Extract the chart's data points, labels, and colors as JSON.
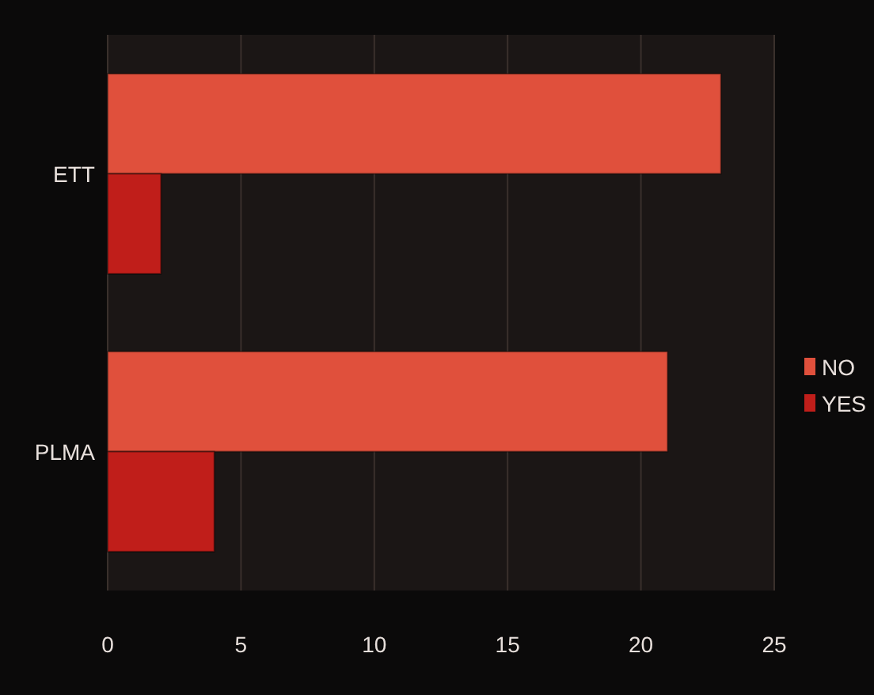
{
  "chart_data": {
    "type": "bar",
    "orientation": "horizontal",
    "categories": [
      "ETT",
      "PLMA"
    ],
    "series": [
      {
        "name": "NO",
        "color": "#e0503c",
        "values": [
          23,
          21
        ]
      },
      {
        "name": "YES",
        "color": "#c01e1a",
        "values": [
          2,
          4
        ]
      }
    ],
    "xlim": [
      0,
      25
    ],
    "xticks": [
      0,
      5,
      10,
      15,
      20,
      25
    ],
    "grid": "x",
    "legend": "right"
  }
}
